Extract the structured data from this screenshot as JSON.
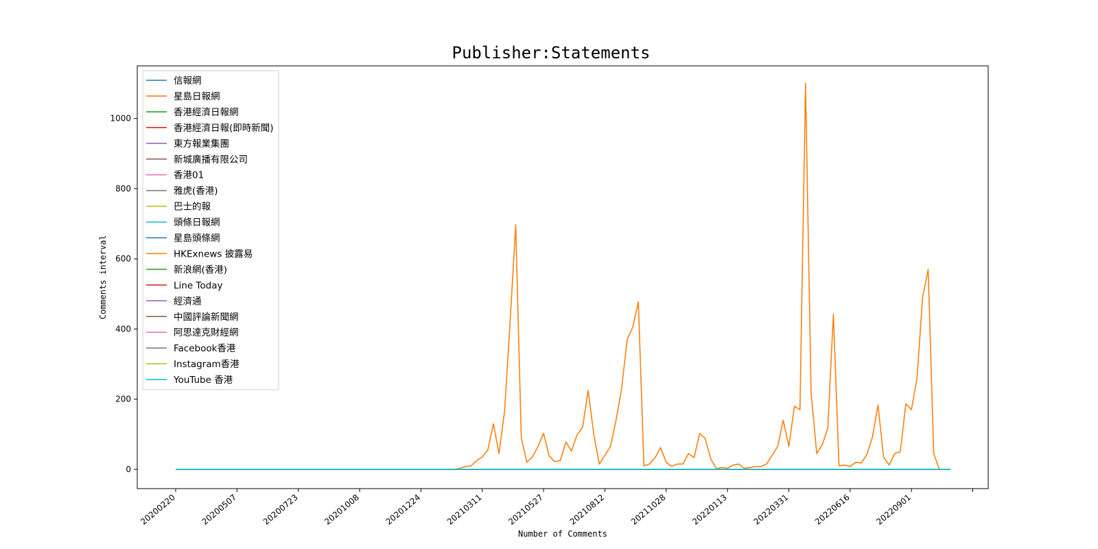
{
  "chart_data": {
    "type": "line",
    "title": "Publisher:Statements",
    "xlabel": "Number of Comments",
    "ylabel": "Comments interval",
    "ylim": [
      -55,
      1150
    ],
    "yticks": [
      0,
      200,
      400,
      600,
      800,
      1000
    ],
    "xtick_labels": [
      "20200220",
      "20200507",
      "20200723",
      "20201008",
      "20201224",
      "20210311",
      "20210527",
      "20210812",
      "20211028",
      "20220113",
      "20220331",
      "20220616",
      "20220901"
    ],
    "legend_position": "upper-left",
    "grid": false,
    "series": [
      {
        "name": "信報網",
        "color": "#1f77b4"
      },
      {
        "name": "星島日報網",
        "color": "#ff7f0e"
      },
      {
        "name": "香港經濟日報網",
        "color": "#2ca02c"
      },
      {
        "name": "香港經濟日報(即時新聞)",
        "color": "#d62728"
      },
      {
        "name": "東方報業集團",
        "color": "#9467bd"
      },
      {
        "name": "新城廣播有限公司",
        "color": "#8c564b"
      },
      {
        "name": "香港01",
        "color": "#e377c2"
      },
      {
        "name": "雅虎(香港)",
        "color": "#7f7f7f"
      },
      {
        "name": "巴士的報",
        "color": "#bcbd22"
      },
      {
        "name": "頭條日報網",
        "color": "#17becf"
      },
      {
        "name": "星島頭條網",
        "color": "#1f77b4"
      },
      {
        "name": "HKExnews 披露易",
        "color": "#ff7f0e"
      },
      {
        "name": "新浪網(香港)",
        "color": "#2ca02c"
      },
      {
        "name": "Line Today",
        "color": "#d62728"
      },
      {
        "name": "經濟通",
        "color": "#9467bd"
      },
      {
        "name": "中國評論新聞網",
        "color": "#8c564b"
      },
      {
        "name": "阿思達克財經網",
        "color": "#e377c2"
      },
      {
        "name": "Facebook香港",
        "color": "#7f7f7f"
      },
      {
        "name": "Instagram香港",
        "color": "#bcbd22"
      },
      {
        "name": "YouTube 香港",
        "color": "#17becf"
      }
    ],
    "weeks_count": 140,
    "active_series": "HKExnews 披露易",
    "active_values": [
      0,
      0,
      0,
      0,
      0,
      0,
      0,
      0,
      0,
      0,
      0,
      0,
      0,
      0,
      0,
      0,
      0,
      0,
      0,
      0,
      0,
      0,
      0,
      0,
      0,
      0,
      0,
      0,
      0,
      0,
      0,
      0,
      0,
      0,
      0,
      0,
      0,
      0,
      0,
      0,
      0,
      0,
      0,
      0,
      0,
      0,
      0,
      0,
      0,
      0,
      0,
      3,
      8,
      10,
      25,
      35,
      55,
      130,
      45,
      165,
      420,
      697,
      90,
      20,
      35,
      65,
      103,
      38,
      22,
      25,
      78,
      52,
      98,
      120,
      225,
      100,
      15,
      40,
      65,
      140,
      230,
      370,
      405,
      477,
      10,
      15,
      33,
      62,
      20,
      8,
      15,
      15,
      45,
      33,
      102,
      88,
      30,
      2,
      5,
      3,
      12,
      15,
      3,
      5,
      8,
      8,
      15,
      40,
      65,
      140,
      65,
      180,
      170,
      1100,
      220,
      45,
      70,
      118,
      442,
      10,
      12,
      8,
      20,
      18,
      42,
      92,
      183,
      35,
      12,
      45,
      50,
      187,
      170,
      260,
      490,
      570,
      45,
      0,
      0,
      0
    ]
  }
}
